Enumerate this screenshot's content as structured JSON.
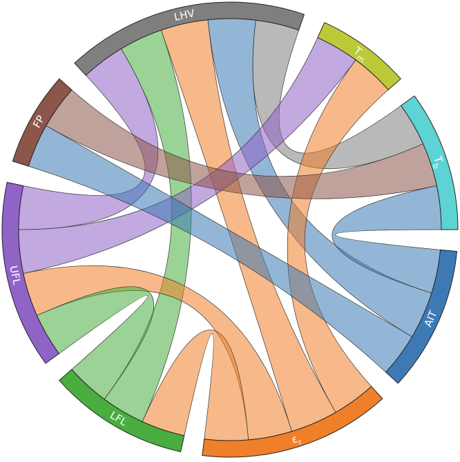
{
  "chart_data": {
    "type": "chord",
    "nodes": [
      {
        "label": "LHV",
        "color": "#7f7f7f"
      },
      {
        "label": "T",
        "sub": "m",
        "color": "#bcca3a"
      },
      {
        "label": "T",
        "sub": "b",
        "color": "#5dd3d3"
      },
      {
        "label": "AIT",
        "color": "#3d7ab5"
      },
      {
        "label": "ε",
        "sub": "r",
        "color": "#f07f2a"
      },
      {
        "label": "LFL",
        "color": "#49ad3f"
      },
      {
        "label": "UFL",
        "color": "#9063c7"
      },
      {
        "label": "FP",
        "color": "#8c564b"
      }
    ],
    "links": [
      {
        "source": 0,
        "target": 2,
        "value": 12
      },
      {
        "source": 6,
        "target": 0,
        "value": 12
      },
      {
        "source": 5,
        "target": 0,
        "value": 12
      },
      {
        "source": 4,
        "target": 0,
        "value": 13
      },
      {
        "source": 3,
        "target": 0,
        "value": 13
      },
      {
        "source": 6,
        "target": 1,
        "value": 12
      },
      {
        "source": 4,
        "target": 1,
        "value": 12
      },
      {
        "source": 7,
        "target": 2,
        "value": 12
      },
      {
        "source": 3,
        "target": 2,
        "value": 12
      },
      {
        "source": 3,
        "target": 7,
        "value": 12
      },
      {
        "source": 4,
        "target": 6,
        "value": 12
      },
      {
        "source": 4,
        "target": 5,
        "value": 12
      },
      {
        "source": 5,
        "target": 6,
        "value": 12
      }
    ]
  }
}
